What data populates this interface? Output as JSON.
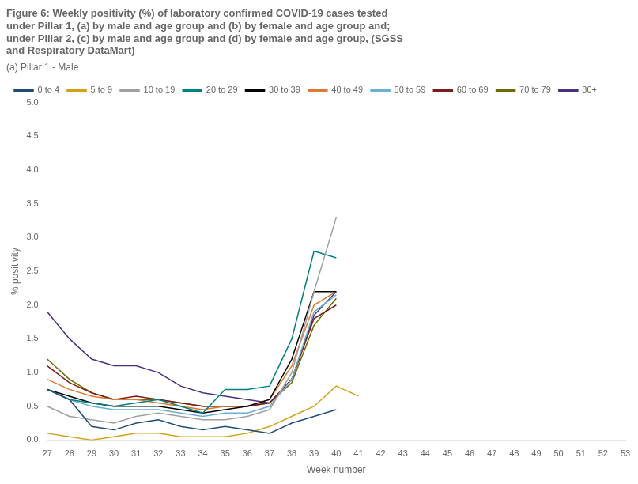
{
  "chart_data": {
    "type": "line",
    "title": "Figure 6: Weekly positivity (%) of laboratory confirmed COVID-19 cases tested\nunder Pillar 1, (a) by male and age group and (b) by female and age group and;\nunder Pillar 2, (c) by male and age group and (d) by female and age group, (SGSS\nand Respiratory DataMart)",
    "subtitle": "(a) Pillar 1 - Male",
    "x_label": "Week number",
    "y_label": "% positivity",
    "categories": [
      "27",
      "28",
      "29",
      "30",
      "31",
      "32",
      "33",
      "34",
      "35",
      "36",
      "37",
      "38",
      "39",
      "40",
      "41",
      "42",
      "43",
      "44",
      "45",
      "46",
      "47",
      "48",
      "49",
      "50",
      "51",
      "52",
      "53"
    ],
    "series": [
      {
        "name": "0 to 4",
        "color": "#1f4e79",
        "values": [
          0.75,
          0.6,
          0.2,
          0.15,
          0.25,
          0.3,
          0.2,
          0.15,
          0.2,
          0.15,
          0.1,
          0.25,
          0.35,
          0.45,
          null,
          null,
          null,
          null,
          null,
          null,
          null,
          null,
          null,
          null,
          null,
          null,
          null
        ]
      },
      {
        "name": "5 to 9",
        "color": "#d4a017",
        "values": [
          0.1,
          0.05,
          0.0,
          0.05,
          0.1,
          0.1,
          0.05,
          0.05,
          0.05,
          0.1,
          0.2,
          0.35,
          0.5,
          0.8,
          0.65,
          null,
          null,
          null,
          null,
          null,
          null,
          null,
          null,
          null,
          null,
          null,
          null
        ]
      },
      {
        "name": "10 to 19",
        "color": "#a0a0a0",
        "values": [
          0.5,
          0.35,
          0.3,
          0.25,
          0.35,
          0.4,
          0.35,
          0.3,
          0.3,
          0.35,
          0.45,
          1.0,
          2.2,
          3.3,
          null,
          null,
          null,
          null,
          null,
          null,
          null,
          null,
          null,
          null,
          null,
          null,
          null
        ]
      },
      {
        "name": "20 to 29",
        "color": "#008080",
        "values": [
          0.75,
          0.6,
          0.55,
          0.5,
          0.55,
          0.6,
          0.5,
          0.4,
          0.75,
          0.75,
          0.8,
          1.5,
          2.8,
          2.7,
          null,
          null,
          null,
          null,
          null,
          null,
          null,
          null,
          null,
          null,
          null,
          null,
          null
        ]
      },
      {
        "name": "30 to 39",
        "color": "#000000",
        "values": [
          0.75,
          0.65,
          0.55,
          0.5,
          0.5,
          0.5,
          0.45,
          0.4,
          0.45,
          0.5,
          0.6,
          1.2,
          2.2,
          2.2,
          null,
          null,
          null,
          null,
          null,
          null,
          null,
          null,
          null,
          null,
          null,
          null,
          null
        ]
      },
      {
        "name": "40 to 49",
        "color": "#e07830",
        "values": [
          0.9,
          0.75,
          0.65,
          0.6,
          0.6,
          0.55,
          0.5,
          0.45,
          0.5,
          0.5,
          0.6,
          1.1,
          2.0,
          2.2,
          null,
          null,
          null,
          null,
          null,
          null,
          null,
          null,
          null,
          null,
          null,
          null,
          null
        ]
      },
      {
        "name": "50 to 59",
        "color": "#6baed6",
        "values": [
          0.75,
          0.6,
          0.5,
          0.45,
          0.45,
          0.45,
          0.4,
          0.35,
          0.4,
          0.4,
          0.5,
          0.9,
          1.9,
          2.15,
          null,
          null,
          null,
          null,
          null,
          null,
          null,
          null,
          null,
          null,
          null,
          null,
          null
        ]
      },
      {
        "name": "60 to 69",
        "color": "#7b1c1c",
        "values": [
          1.1,
          0.85,
          0.7,
          0.6,
          0.65,
          0.6,
          0.55,
          0.5,
          0.5,
          0.5,
          0.55,
          0.9,
          1.8,
          2.0,
          null,
          null,
          null,
          null,
          null,
          null,
          null,
          null,
          null,
          null,
          null,
          null,
          null
        ]
      },
      {
        "name": "70 to 79",
        "color": "#6b6b00",
        "values": [
          1.2,
          0.9,
          0.7,
          0.6,
          0.6,
          0.6,
          0.55,
          0.5,
          0.5,
          0.5,
          0.55,
          0.85,
          1.7,
          2.1,
          null,
          null,
          null,
          null,
          null,
          null,
          null,
          null,
          null,
          null,
          null,
          null,
          null
        ]
      },
      {
        "name": "80+",
        "color": "#4b3080",
        "values": [
          1.9,
          1.5,
          1.2,
          1.1,
          1.1,
          1.0,
          0.8,
          0.7,
          0.65,
          0.6,
          0.55,
          0.9,
          1.85,
          2.2,
          null,
          null,
          null,
          null,
          null,
          null,
          null,
          null,
          null,
          null,
          null,
          null,
          null
        ]
      }
    ],
    "ylim": [
      0.0,
      5.0
    ],
    "yticks": [
      {
        "value": 0,
        "label": "0.0"
      },
      0.5,
      {
        "value": 1,
        "label": "1.0"
      },
      1.5,
      {
        "value": 2,
        "label": "2.0"
      },
      2.5,
      {
        "value": 3,
        "label": "3.0"
      },
      3.5,
      {
        "value": 4,
        "label": "4.0"
      },
      4.5,
      {
        "value": 5,
        "label": "5.0"
      }
    ],
    "grid": false,
    "legend": "upper left"
  }
}
